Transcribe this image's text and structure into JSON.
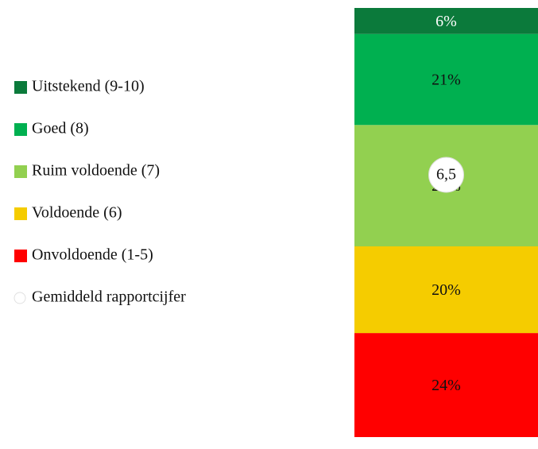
{
  "chart_data": {
    "type": "stacked_bar",
    "categories": [
      null
    ],
    "series": [
      {
        "name": "Uitstekend (9-10)",
        "color": "#0b7a3b",
        "values": [
          6
        ],
        "value_labels": [
          "6%"
        ]
      },
      {
        "name": "Goed (8)",
        "color": "#00b050",
        "values": [
          21
        ],
        "value_labels": [
          "21%"
        ]
      },
      {
        "name": "Ruim voldoende (7)",
        "color": "#92d050",
        "values": [
          28
        ],
        "value_labels": [
          "28%"
        ]
      },
      {
        "name": "Voldoende (6)",
        "color": "#f5cc00",
        "values": [
          20
        ],
        "value_labels": [
          "20%"
        ]
      },
      {
        "name": "Onvoldoende (1-5)",
        "color": "#ff0000",
        "values": [
          24
        ],
        "value_labels": [
          "24%"
        ]
      },
      {
        "name": "Gemiddeld rapportcijfer",
        "type": "marker",
        "axis": "y2",
        "color": "#ffffff",
        "values": [
          6.5
        ],
        "value_labels": [
          "6,5"
        ]
      }
    ],
    "ylim": [
      0,
      99
    ],
    "y2lim": [
      1,
      10
    ],
    "legend": "left"
  }
}
